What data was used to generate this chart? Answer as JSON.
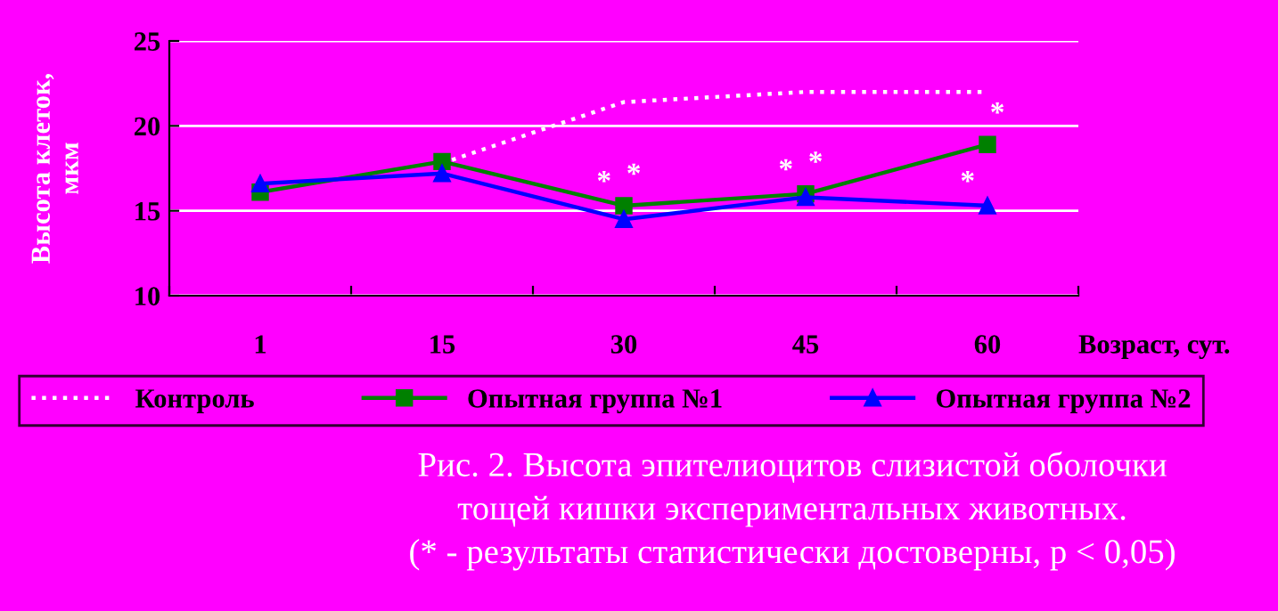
{
  "chart_data": {
    "type": "line",
    "title": "Рис. 2. Высота эпителиоцитов слизистой оболочки\nтощей кишки экспериментальных животных.\n(* - результаты статистически достоверны, p < 0,05)",
    "xlabel": "Возраст, сут.",
    "ylabel": "Высота клеток,\nмкм",
    "categories": [
      "1",
      "15",
      "30",
      "45",
      "60"
    ],
    "series": [
      {
        "name": "Контроль",
        "color": "#ffffff",
        "marker": "none",
        "line_style": "dotted",
        "values": [
          null,
          17.8,
          21.4,
          22.0,
          22.0
        ]
      },
      {
        "name": "Опытная группа №1",
        "color": "#008000",
        "marker": "square",
        "line_style": "solid",
        "values": [
          16.1,
          17.9,
          15.3,
          16.0,
          18.9
        ]
      },
      {
        "name": "Опытная группа №2",
        "color": "#0000ff",
        "marker": "triangle",
        "line_style": "solid",
        "values": [
          16.6,
          17.2,
          14.5,
          15.8,
          15.3
        ]
      }
    ],
    "annotations": [
      {
        "text": "*",
        "x": "30",
        "y": 15.3
      },
      {
        "text": "*",
        "x": "30",
        "y": 15.3
      },
      {
        "text": "*",
        "x": "45",
        "y": 16.0
      },
      {
        "text": "*",
        "x": "45",
        "y": 16.0
      },
      {
        "text": "*",
        "x": "60",
        "y": 15.3
      },
      {
        "text": "*",
        "x": "60",
        "y": 18.9
      }
    ],
    "ylim": [
      10,
      25
    ],
    "yticks": [
      "10",
      15,
      20,
      25
    ],
    "grid": "y",
    "legend": "bottom"
  }
}
